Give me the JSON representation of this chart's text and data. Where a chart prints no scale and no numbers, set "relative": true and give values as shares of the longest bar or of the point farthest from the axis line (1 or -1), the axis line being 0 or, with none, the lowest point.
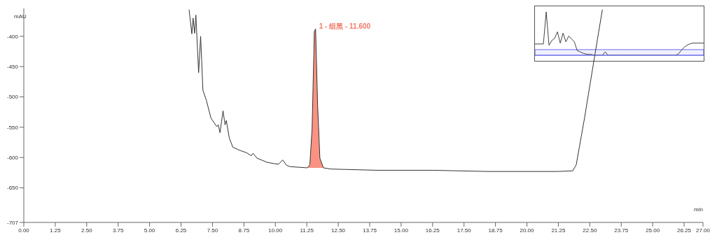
{
  "chart_data": [
    {
      "type": "line",
      "xlabel": "min",
      "ylabel": "mAU",
      "xlim": [
        0,
        27
      ],
      "ylim": [
        -707,
        -354
      ],
      "xticks": [
        {
          "value": 0,
          "label": "0.00"
        },
        1.25,
        {
          "value": 2.5,
          "label": "2.50"
        },
        3.75,
        {
          "value": 5,
          "label": "5.00"
        },
        6.25,
        {
          "value": 7.5,
          "label": "7.50"
        },
        8.75,
        {
          "value": 10,
          "label": "10.00"
        },
        11.25,
        {
          "value": 12.5,
          "label": "12.50"
        },
        13.75,
        {
          "value": 15,
          "label": "15.00"
        },
        16.25,
        {
          "value": 17.5,
          "label": "17.50"
        },
        18.75,
        {
          "value": 20,
          "label": "20.00"
        },
        21.25,
        {
          "value": 22.5,
          "label": "22.50"
        },
        23.75,
        {
          "value": 25,
          "label": "25.00"
        },
        26.25,
        {
          "value": 27,
          "label": "27.00"
        }
      ],
      "yticks": [
        -400,
        -450,
        -500,
        -550,
        -600,
        -650,
        -707
      ],
      "legend": false,
      "marker": "none",
      "line_style": "solid",
      "series": [
        {
          "type": "line",
          "color": "#333333",
          "x": [
            6.57,
            6.68,
            6.73,
            6.79,
            6.84,
            6.95,
            7.03,
            7.12,
            7.26,
            7.44,
            7.67,
            7.73,
            7.8,
            7.92,
            8.0,
            8.05,
            8.17,
            8.31,
            8.58,
            8.85,
            9.04,
            9.11,
            9.27,
            9.68,
            9.95,
            10.13,
            10.29,
            10.45,
            10.59,
            11.27,
            11.37,
            11.46,
            11.55,
            11.6,
            11.68,
            11.77,
            11.91,
            12.23,
            14.06,
            16.26,
            18.45,
            21.19,
            21.82,
            21.96,
            22.29,
            22.7,
            23.0
          ],
          "values": [
            -356,
            -396,
            -370,
            -395,
            -365,
            -460,
            -400,
            -489,
            -506,
            -535,
            -549,
            -546,
            -559,
            -523,
            -546,
            -539,
            -568,
            -583,
            -588,
            -592,
            -597,
            -593,
            -601,
            -608,
            -610,
            -611,
            -604,
            -613,
            -615,
            -617,
            -612,
            -553,
            -392,
            -388,
            -513,
            -601,
            -617,
            -619,
            -621,
            -621,
            -623,
            -623,
            -622,
            -612,
            -535,
            -431,
            -356
          ]
        },
        {
          "type": "area",
          "color": "#fa9282",
          "x": [
            11.27,
            11.37,
            11.46,
            11.55,
            11.6,
            11.68,
            11.77,
            11.91
          ],
          "values": [
            -617,
            -612,
            -553,
            -392,
            -388,
            -513,
            -601,
            -617
          ]
        }
      ],
      "annotations": [
        {
          "text": "1 - 组黑 - 11.600",
          "x": 11.6,
          "y": -388
        }
      ]
    },
    {
      "type": "line",
      "relative": true,
      "categories": [
        null,
        null,
        null,
        null,
        null,
        null,
        null,
        null,
        null,
        null,
        null,
        null,
        null,
        null,
        null,
        null,
        null,
        null,
        null,
        null,
        null,
        null,
        null,
        null,
        null,
        null,
        null,
        null,
        null,
        null,
        null,
        null,
        null,
        null,
        null,
        null,
        null,
        null,
        null,
        null,
        null,
        null,
        null,
        null,
        null,
        null,
        null,
        null,
        null,
        null,
        null,
        null,
        null,
        null,
        null,
        null,
        null,
        null,
        null,
        null,
        null
      ],
      "series": [
        {
          "color": "#444444",
          "values": [
            0.26,
            0.26,
            0.26,
            0.26,
            1,
            0.23,
            0.34,
            0.39,
            0.54,
            0.28,
            0.51,
            0.31,
            0.44,
            0.38,
            0.31,
            0.11,
            0.08,
            0.05,
            0.03,
            0.02,
            0.02,
            0,
            0,
            0,
            0,
            0.08,
            0,
            0,
            0,
            0,
            0,
            0,
            0,
            0,
            0,
            0,
            0,
            0,
            0,
            0,
            0,
            0,
            0,
            0,
            0,
            0,
            0,
            0,
            0,
            0,
            0,
            0.03,
            0.11,
            0.18,
            0.23,
            0.26,
            0.28,
            0.28,
            0.28,
            0.28,
            0.28
          ]
        }
      ],
      "bands": [
        {
          "axis": "y",
          "from": 0,
          "to": 0.13,
          "color": "#6a6aee"
        }
      ]
    }
  ]
}
